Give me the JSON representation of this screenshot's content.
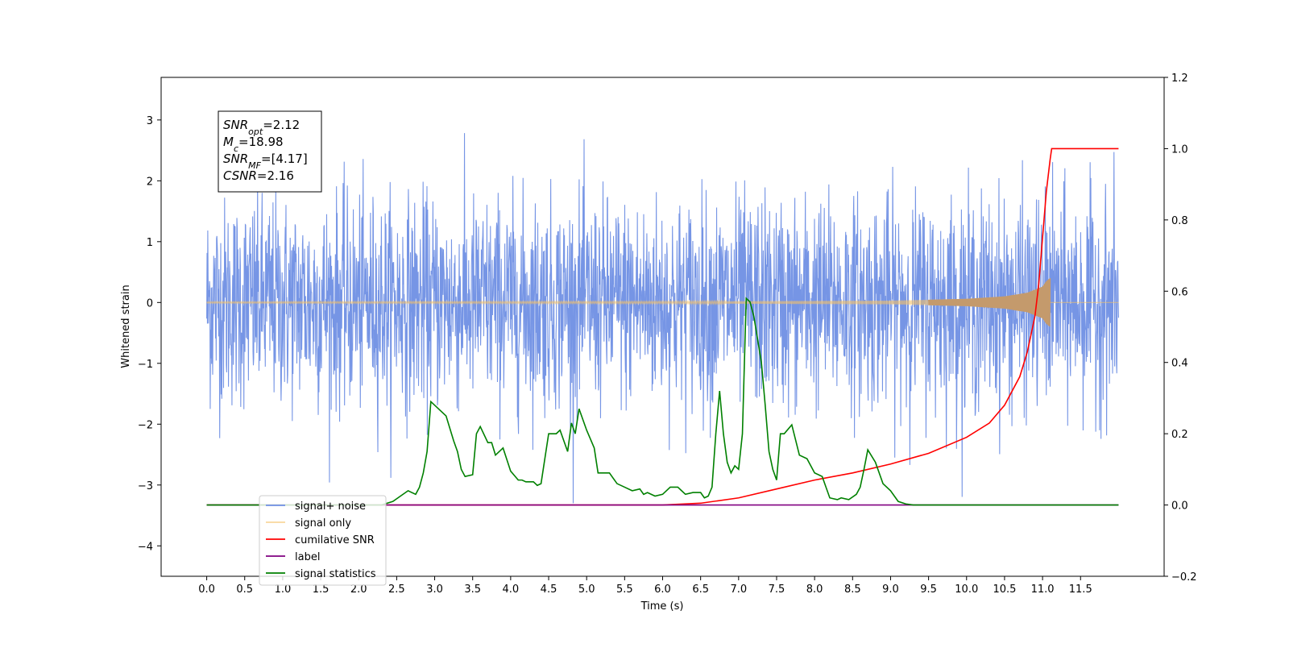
{
  "chart_data": {
    "type": "line",
    "xlabel": "Time (s)",
    "ylabel": "Whitened strain",
    "xlim": [
      -0.6,
      12.6
    ],
    "ylim": [
      -4.5,
      3.7
    ],
    "ylim_right": [
      -0.2,
      1.2
    ],
    "x_ticks": [
      0.0,
      0.5,
      1.0,
      1.5,
      2.0,
      2.5,
      3.0,
      3.5,
      4.0,
      4.5,
      5.0,
      5.5,
      6.0,
      6.5,
      7.0,
      7.5,
      8.0,
      8.5,
      9.0,
      9.5,
      10.0,
      10.5,
      11.0,
      11.5
    ],
    "x_tick_labels": [
      "0.0",
      "0.5",
      "1.0",
      "1.5",
      "2.0",
      "2.5",
      "3.0",
      "3.5",
      "4.0",
      "4.5",
      "5.0",
      "5.5",
      "6.0",
      "6.5",
      "7.0",
      "7.5",
      "8.0",
      "8.5",
      "9.0",
      "9.5",
      "10.0",
      "10.5",
      "11.0",
      "11.5"
    ],
    "y_ticks_left": [
      -4,
      -3,
      -2,
      -1,
      0,
      1,
      2,
      3
    ],
    "y_tick_labels_left": [
      "−4",
      "−3",
      "−2",
      "−1",
      "0",
      "1",
      "2",
      "3"
    ],
    "y_ticks_right": [
      -0.2,
      0.0,
      0.2,
      0.4,
      0.6,
      0.8,
      1.0,
      1.2
    ],
    "y_tick_labels_right": [
      "−0.2",
      "0.0",
      "0.2",
      "0.4",
      "0.6",
      "0.8",
      "1.0",
      "1.2"
    ],
    "grid": false,
    "legend_position": "lower-left",
    "annotation": {
      "lines": [
        {
          "main": "SNR",
          "sub": "opt",
          "value": "=2.12"
        },
        {
          "main": "M",
          "sub": "c",
          "value": "=18.98"
        },
        {
          "main": "SNR",
          "sub": "MF",
          "value": "=[4.17]"
        },
        {
          "main": "CSNR",
          "sub": "",
          "value": "=2.16"
        }
      ]
    },
    "series": [
      {
        "name": "signal+ noise",
        "axis": "left",
        "color": "#6f8fe4",
        "kind": "noise",
        "x_range": [
          0.0,
          12.0
        ],
        "amplitude_typical": 1.6,
        "amplitude_max": 3.3
      },
      {
        "name": "signal only",
        "axis": "left",
        "color": "#f5c266",
        "kind": "chirp",
        "x_range": [
          0.0,
          11.1
        ],
        "envelope": {
          "x": [
            0,
            6,
            9,
            10,
            10.5,
            10.8,
            11.0,
            11.05,
            11.1
          ],
          "y": [
            0.01,
            0.015,
            0.03,
            0.06,
            0.1,
            0.16,
            0.26,
            0.35,
            0.4
          ]
        }
      },
      {
        "name": "cumilative SNR",
        "axis": "right",
        "color": "#ff0000",
        "x": [
          0,
          6.0,
          6.5,
          7.0,
          7.5,
          8.0,
          8.5,
          9.0,
          9.5,
          10.0,
          10.3,
          10.5,
          10.7,
          10.8,
          10.9,
          10.95,
          11.0,
          11.05,
          11.1,
          11.12,
          12.0
        ],
        "y": [
          0.0,
          0.0,
          0.005,
          0.02,
          0.045,
          0.07,
          0.09,
          0.115,
          0.145,
          0.19,
          0.23,
          0.28,
          0.36,
          0.43,
          0.53,
          0.62,
          0.75,
          0.88,
          0.97,
          1.0,
          1.0
        ]
      },
      {
        "name": "label",
        "axis": "right",
        "color": "#800080",
        "x": [
          0,
          12.0
        ],
        "y": [
          0.0,
          0.0
        ]
      },
      {
        "name": "signal statistics",
        "axis": "right",
        "color": "#008000",
        "x": [
          0,
          2.3,
          2.45,
          2.55,
          2.65,
          2.75,
          2.8,
          2.85,
          2.9,
          2.95,
          3.05,
          3.15,
          3.25,
          3.3,
          3.35,
          3.4,
          3.5,
          3.55,
          3.6,
          3.7,
          3.75,
          3.8,
          3.9,
          4.0,
          4.1,
          4.15,
          4.2,
          4.3,
          4.35,
          4.4,
          4.5,
          4.6,
          4.65,
          4.75,
          4.8,
          4.85,
          4.9,
          4.95,
          5.0,
          5.1,
          5.15,
          5.2,
          5.3,
          5.4,
          5.5,
          5.6,
          5.7,
          5.75,
          5.8,
          5.9,
          6.0,
          6.1,
          6.2,
          6.25,
          6.3,
          6.4,
          6.5,
          6.55,
          6.6,
          6.65,
          6.7,
          6.75,
          6.8,
          6.85,
          6.9,
          6.95,
          7.0,
          7.05,
          7.1,
          7.15,
          7.2,
          7.3,
          7.35,
          7.4,
          7.45,
          7.5,
          7.55,
          7.6,
          7.7,
          7.8,
          7.9,
          8.0,
          8.1,
          8.15,
          8.2,
          8.3,
          8.35,
          8.45,
          8.55,
          8.6,
          8.65,
          8.7,
          8.8,
          8.9,
          9.0,
          9.1,
          9.2,
          9.3,
          12.0
        ],
        "y": [
          0.0,
          0.0,
          0.01,
          0.025,
          0.04,
          0.03,
          0.05,
          0.09,
          0.15,
          0.29,
          0.27,
          0.25,
          0.18,
          0.15,
          0.1,
          0.08,
          0.085,
          0.2,
          0.22,
          0.175,
          0.175,
          0.14,
          0.16,
          0.095,
          0.07,
          0.07,
          0.065,
          0.065,
          0.055,
          0.06,
          0.2,
          0.2,
          0.21,
          0.15,
          0.23,
          0.2,
          0.27,
          0.24,
          0.21,
          0.16,
          0.09,
          0.09,
          0.09,
          0.06,
          0.05,
          0.04,
          0.045,
          0.03,
          0.035,
          0.025,
          0.03,
          0.05,
          0.05,
          0.04,
          0.03,
          0.035,
          0.035,
          0.02,
          0.025,
          0.05,
          0.2,
          0.32,
          0.2,
          0.12,
          0.09,
          0.11,
          0.1,
          0.2,
          0.58,
          0.57,
          0.53,
          0.4,
          0.28,
          0.15,
          0.1,
          0.07,
          0.2,
          0.2,
          0.225,
          0.14,
          0.13,
          0.09,
          0.08,
          0.05,
          0.02,
          0.015,
          0.02,
          0.015,
          0.03,
          0.05,
          0.1,
          0.155,
          0.12,
          0.06,
          0.04,
          0.01,
          0.003,
          0.0,
          0.0
        ]
      }
    ]
  }
}
